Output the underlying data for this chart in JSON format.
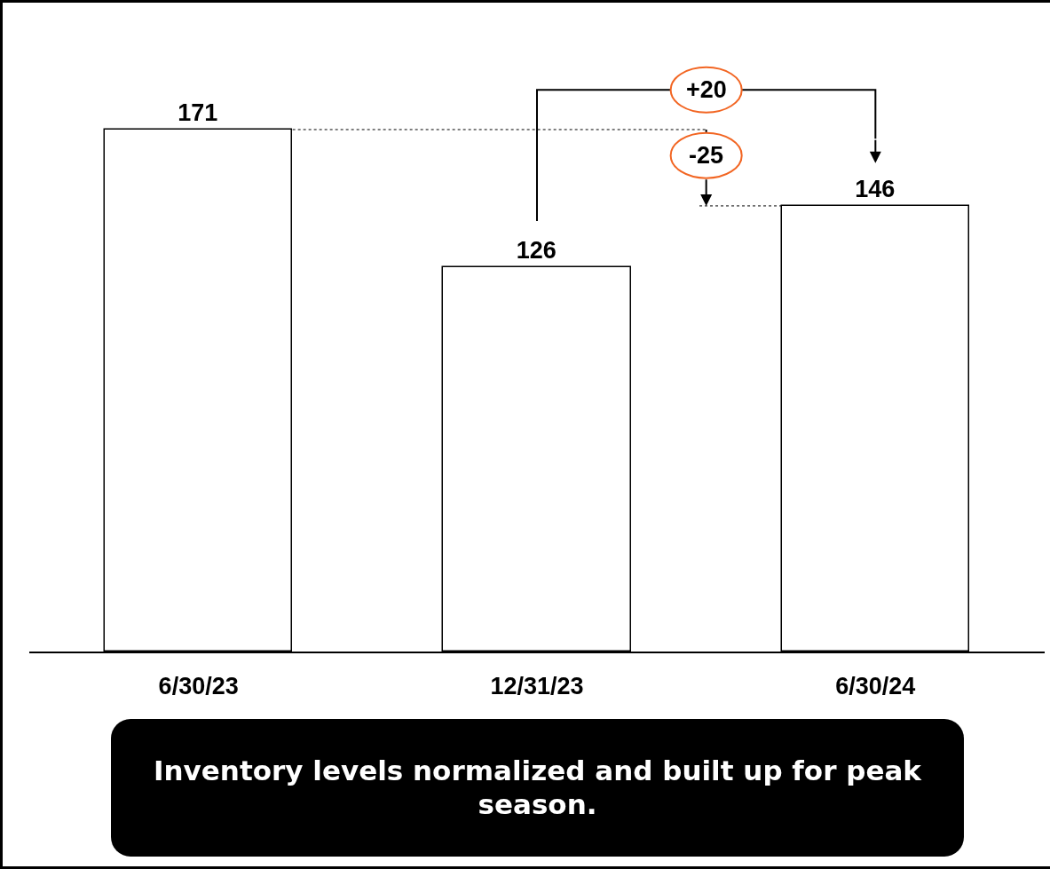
{
  "chart_data": {
    "type": "bar",
    "categories": [
      "6/30/23",
      "12/31/23",
      "6/30/24"
    ],
    "values": [
      171,
      126,
      146
    ],
    "color": "#ffffff",
    "data_labels": true,
    "tick_labels": "x",
    "annotations": [
      "+20",
      "-25",
      "Inventory levels normalized and built up for peak season."
    ]
  }
}
